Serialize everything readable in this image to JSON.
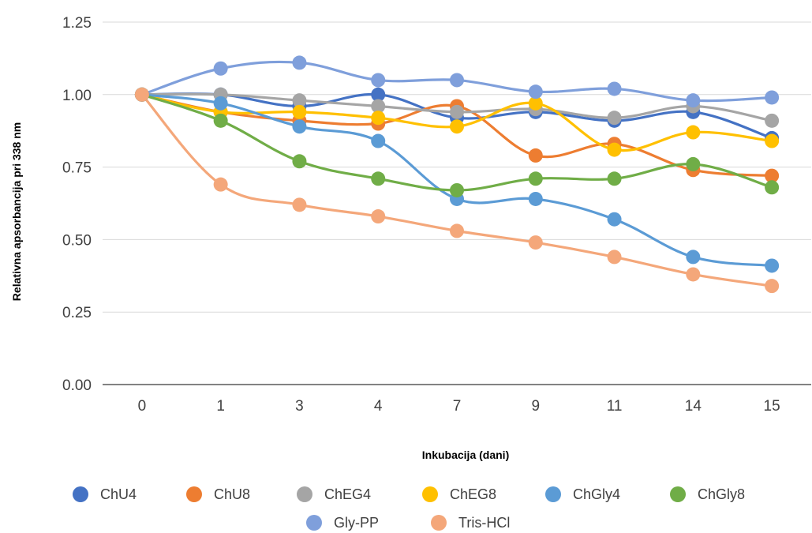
{
  "chart_data": {
    "type": "line",
    "title": "",
    "xlabel": "Inkubacija (dani)",
    "ylabel": "Relativna apsorbancija pri 338 nm",
    "categories": [
      "0",
      "1",
      "3",
      "4",
      "7",
      "9",
      "11",
      "14",
      "15"
    ],
    "ylim": [
      0,
      1.25
    ],
    "yticks": [
      "0.00",
      "0.25",
      "0.50",
      "0.75",
      "1.00",
      "1.25"
    ],
    "grid": true,
    "legend_position": "bottom",
    "series": [
      {
        "name": "ChU4",
        "color": "#4472C4",
        "values": [
          1.0,
          1.0,
          0.96,
          1.0,
          0.92,
          0.94,
          0.91,
          0.94,
          0.85
        ]
      },
      {
        "name": "ChU8",
        "color": "#ED7D31",
        "values": [
          1.0,
          0.94,
          0.91,
          0.9,
          0.96,
          0.79,
          0.83,
          0.74,
          0.72
        ]
      },
      {
        "name": "ChEG4",
        "color": "#A5A5A5",
        "values": [
          1.0,
          1.0,
          0.98,
          0.96,
          0.94,
          0.95,
          0.92,
          0.96,
          0.91
        ]
      },
      {
        "name": "ChEG8",
        "color": "#FFC000",
        "values": [
          1.0,
          0.94,
          0.94,
          0.92,
          0.89,
          0.97,
          0.81,
          0.87,
          0.84
        ]
      },
      {
        "name": "ChGly4",
        "color": "#5B9BD5",
        "values": [
          1.0,
          0.97,
          0.89,
          0.84,
          0.64,
          0.64,
          0.57,
          0.44,
          0.41
        ]
      },
      {
        "name": "ChGly8",
        "color": "#70AD47",
        "values": [
          1.0,
          0.91,
          0.77,
          0.71,
          0.67,
          0.71,
          0.71,
          0.76,
          0.68
        ]
      },
      {
        "name": "Gly-PP",
        "color": "#7F9FDB",
        "values": [
          1.0,
          1.09,
          1.11,
          1.05,
          1.05,
          1.01,
          1.02,
          0.98,
          0.99
        ]
      },
      {
        "name": "Tris-HCl",
        "color": "#F4A77A",
        "values": [
          1.0,
          0.69,
          0.62,
          0.58,
          0.53,
          0.49,
          0.44,
          0.38,
          0.34
        ]
      }
    ]
  }
}
